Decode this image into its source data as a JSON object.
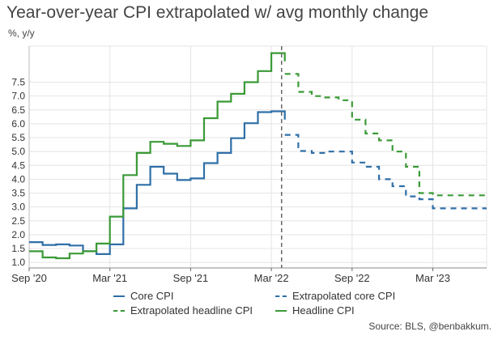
{
  "chart_data": {
    "type": "line",
    "title": "Year-over-year CPI extrapolated w/ avg monthly change",
    "unit_label": "%, y/y",
    "source": "Source: BLS, @benbakkum.",
    "x_ticks": [
      "Sep '20",
      "Mar '21",
      "Sep '21",
      "Mar '22",
      "Sep '22",
      "Mar '23"
    ],
    "x_range": [
      "2020-09",
      "2023-07"
    ],
    "y_range": [
      0.8,
      8.8
    ],
    "y_ticks": [
      "1.0",
      "1.5",
      "2.0",
      "2.5",
      "3.0",
      "3.5",
      "4.0",
      "4.5",
      "5.0",
      "5.5",
      "6.0",
      "6.5",
      "7.0",
      "7.5"
    ],
    "grid": true,
    "divider_at": "2022-04",
    "legend_placement": "bottom",
    "series": [
      {
        "name": "Core CPI",
        "color": "#2f6fa8",
        "dash": false,
        "steps": [
          [
            "2020-09",
            1.73
          ],
          [
            "2020-10",
            1.63
          ],
          [
            "2020-11",
            1.65
          ],
          [
            "2020-12",
            1.61
          ],
          [
            "2021-01",
            1.4
          ],
          [
            "2021-02",
            1.3
          ],
          [
            "2021-03",
            1.65
          ],
          [
            "2021-04",
            2.95
          ],
          [
            "2021-05",
            3.8
          ],
          [
            "2021-06",
            4.45
          ],
          [
            "2021-07",
            4.2
          ],
          [
            "2021-08",
            3.97
          ],
          [
            "2021-09",
            4.03
          ],
          [
            "2021-10",
            4.58
          ],
          [
            "2021-11",
            4.95
          ],
          [
            "2021-12",
            5.48
          ],
          [
            "2022-01",
            6.02
          ],
          [
            "2022-02",
            6.42
          ],
          [
            "2022-03",
            6.45
          ]
        ],
        "end": [
          "2022-04",
          6.15
        ]
      },
      {
        "name": "Extrapolated core CPI",
        "color": "#2f6fa8",
        "dash": true,
        "steps": [
          [
            "2022-04",
            5.6
          ],
          [
            "2022-05",
            5.02
          ],
          [
            "2022-06",
            4.95
          ],
          [
            "2022-07",
            5.0
          ],
          [
            "2022-08",
            5.0
          ],
          [
            "2022-09",
            4.6
          ],
          [
            "2022-10",
            4.45
          ],
          [
            "2022-11",
            4.0
          ],
          [
            "2022-12",
            3.75
          ],
          [
            "2023-01",
            3.38
          ],
          [
            "2023-02",
            3.28
          ],
          [
            "2023-03",
            2.95
          ],
          [
            "2023-04",
            2.95
          ],
          [
            "2023-05",
            2.95
          ],
          [
            "2023-06",
            2.95
          ]
        ],
        "end": [
          "2023-07",
          2.95
        ]
      },
      {
        "name": "Extrapolated headline CPI",
        "color": "#3a9a36",
        "dash": true,
        "steps": [
          [
            "2022-04",
            7.8
          ],
          [
            "2022-05",
            7.15
          ],
          [
            "2022-06",
            7.0
          ],
          [
            "2022-07",
            6.95
          ],
          [
            "2022-08",
            6.85
          ],
          [
            "2022-09",
            6.15
          ],
          [
            "2022-10",
            5.65
          ],
          [
            "2022-11",
            5.4
          ],
          [
            "2022-12",
            5.0
          ],
          [
            "2023-01",
            4.45
          ],
          [
            "2023-02",
            3.5
          ],
          [
            "2023-03",
            3.42
          ],
          [
            "2023-04",
            3.42
          ],
          [
            "2023-05",
            3.42
          ],
          [
            "2023-06",
            3.42
          ]
        ],
        "end": [
          "2023-07",
          3.42
        ]
      },
      {
        "name": "Headline CPI",
        "color": "#3a9a36",
        "dash": false,
        "steps": [
          [
            "2020-09",
            1.4
          ],
          [
            "2020-10",
            1.18
          ],
          [
            "2020-11",
            1.15
          ],
          [
            "2020-12",
            1.32
          ],
          [
            "2021-01",
            1.4
          ],
          [
            "2021-02",
            1.68
          ],
          [
            "2021-03",
            2.65
          ],
          [
            "2021-04",
            4.15
          ],
          [
            "2021-05",
            4.95
          ],
          [
            "2021-06",
            5.35
          ],
          [
            "2021-07",
            5.28
          ],
          [
            "2021-08",
            5.2
          ],
          [
            "2021-09",
            5.4
          ],
          [
            "2021-10",
            6.2
          ],
          [
            "2021-11",
            6.8
          ],
          [
            "2021-12",
            7.08
          ],
          [
            "2022-01",
            7.5
          ],
          [
            "2022-02",
            7.9
          ],
          [
            "2022-03",
            8.55
          ]
        ],
        "end": [
          "2022-04",
          8.25
        ]
      }
    ]
  }
}
